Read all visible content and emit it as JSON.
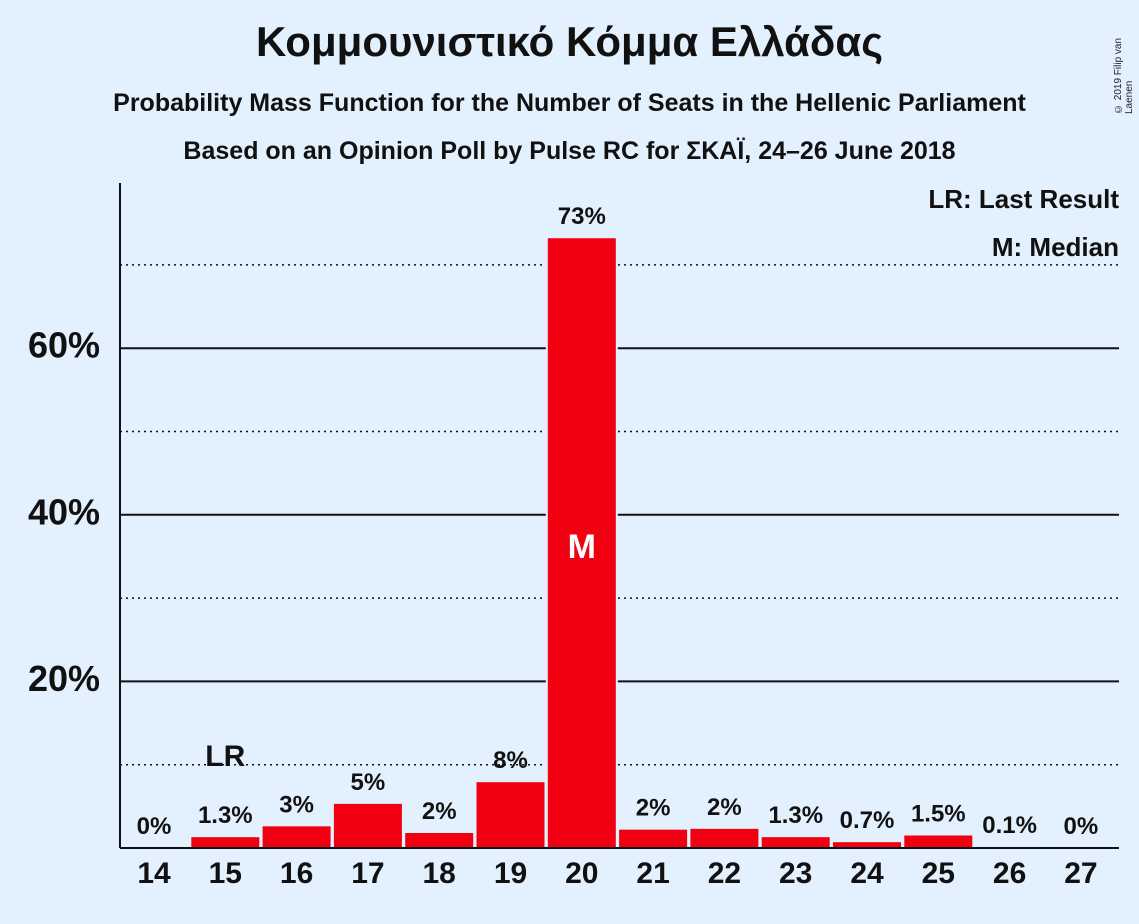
{
  "title": "Κομμουνιστικό Κόμμα Ελλάδας",
  "subtitle1": "Probability Mass Function for the Number of Seats in the Hellenic Parliament",
  "subtitle2": "Based on an Opinion Poll by Pulse RC for ΣΚΑΪ, 24–26 June 2018",
  "copyright": "© 2019 Filip van Laenen",
  "legend": {
    "last_result": "LR: Last Result",
    "median": "M: Median"
  },
  "colors": {
    "bar": "#f00010",
    "background": "#e3f0fd",
    "axis": "#111111"
  },
  "chart_data": {
    "type": "bar",
    "categories": [
      "14",
      "15",
      "16",
      "17",
      "18",
      "19",
      "20",
      "21",
      "22",
      "23",
      "24",
      "25",
      "26",
      "27"
    ],
    "values": [
      0,
      1.3,
      2.6,
      5.3,
      1.8,
      7.9,
      73.2,
      2.2,
      2.3,
      1.3,
      0.7,
      1.5,
      0.1,
      0
    ],
    "data_labels": [
      "0%",
      "1.3%",
      "3%",
      "5%",
      "2%",
      "8%",
      "73%",
      "2%",
      "2%",
      "1.3%",
      "0.7%",
      "1.5%",
      "0.1%",
      "0%"
    ],
    "y_ticks": [
      20,
      40,
      60
    ],
    "y_tick_labels": [
      "20%",
      "40%",
      "60%"
    ],
    "ylim": [
      0,
      80
    ],
    "solid_gridlines": [
      20,
      40,
      60
    ],
    "dotted_gridlines": [
      10,
      30,
      50,
      70
    ],
    "last_result_category": "15",
    "last_result_label": "LR",
    "median_category": "20",
    "median_label": "M"
  }
}
